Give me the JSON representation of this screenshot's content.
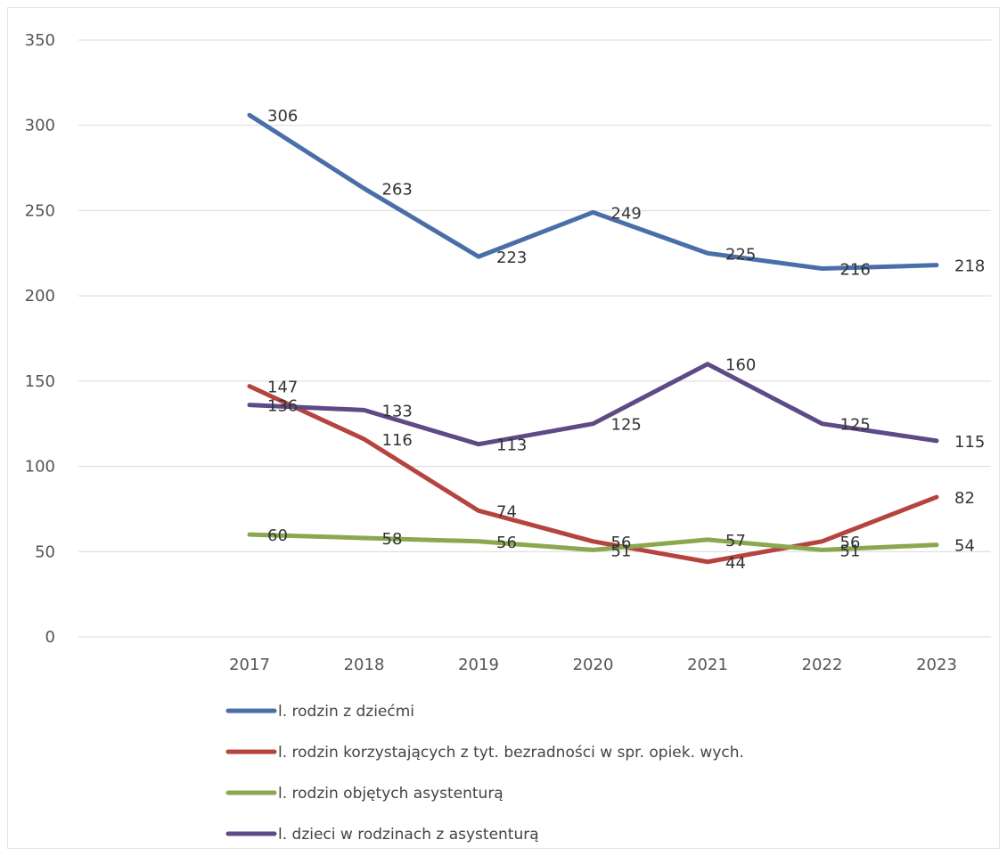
{
  "chart_data": {
    "type": "line",
    "title": "",
    "xlabel": "",
    "ylabel": "",
    "categories": [
      "2017",
      "2018",
      "2019",
      "2020",
      "2021",
      "2022",
      "2023"
    ],
    "ylim": [
      0,
      350
    ],
    "yticks": [
      0,
      50,
      100,
      150,
      200,
      250,
      300,
      350
    ],
    "grid": true,
    "legend_position": "bottom",
    "series": [
      {
        "name": "l. rodzin z dziećmi",
        "color": "#4a6fa8",
        "values": [
          306,
          263,
          223,
          249,
          225,
          216,
          218
        ]
      },
      {
        "name": "l. rodzin korzystających z tyt. bezradności w spr. opiek. wych.",
        "color": "#b5443f",
        "values": [
          147,
          116,
          74,
          56,
          44,
          56,
          82
        ]
      },
      {
        "name": "l. rodzin objętych asystenturą",
        "color": "#8aa84e",
        "values": [
          60,
          58,
          56,
          51,
          57,
          51,
          54
        ]
      },
      {
        "name": "l. dzieci w rodzinach z asystenturą",
        "color": "#5d4a86",
        "values": [
          136,
          133,
          113,
          125,
          160,
          125,
          115
        ]
      }
    ]
  }
}
